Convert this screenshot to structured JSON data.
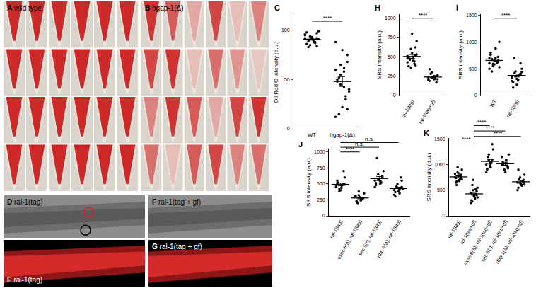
{
  "image_panels": [
    {
      "label": "A",
      "caption": "wild type"
    },
    {
      "label": "B",
      "caption": "hgap-1(Δ)"
    },
    {
      "label": "D",
      "caption": "ral-1(tag)"
    },
    {
      "label": "E",
      "caption": "ral-1(tag)"
    },
    {
      "label": "F",
      "caption": "ral-1(tag + gf)"
    },
    {
      "label": "G",
      "caption": "ral-1(tag + gf)"
    }
  ],
  "chart_data": [
    {
      "type": "scatter",
      "title": "C",
      "y_label": "Oil Red O intensity (a.u.)",
      "categories": [
        "WT",
        "hgap-1(Δ)"
      ],
      "values": [
        [
          96,
          92,
          88,
          85,
          98,
          91,
          87,
          93,
          89,
          95,
          84,
          90,
          94,
          86,
          99,
          88,
          91,
          83,
          92,
          97
        ],
        [
          88,
          75,
          62,
          55,
          48,
          40,
          33,
          22,
          15,
          12,
          68,
          58,
          45,
          50,
          38,
          30,
          80,
          52,
          60,
          20,
          42,
          65
        ]
      ],
      "mean": [
        91,
        48
      ],
      "sem": [
        1,
        5
      ],
      "color": "#000000",
      "marker": "circle",
      "grid": false,
      "ylim": [
        0,
        115
      ],
      "yticks": [
        0,
        50,
        100
      ],
      "comparisons": [
        {
          "from": 0,
          "to": 1,
          "text": "****"
        }
      ]
    },
    {
      "type": "scatter",
      "title": "H",
      "y_label": "SRS intensity (a.u.)",
      "categories": [
        "ral-1(tag)",
        "ral-1(tag+gf)"
      ],
      "values": [
        [
          480,
          520,
          450,
          600,
          380,
          700,
          410,
          550,
          470,
          430,
          620,
          500,
          360,
          490,
          530,
          440,
          800,
          460,
          510,
          390
        ],
        [
          230,
          250,
          210,
          300,
          190,
          260,
          220,
          240,
          280,
          200,
          170,
          250,
          230,
          340,
          210,
          240
        ]
      ],
      "mean": [
        504,
        239
      ],
      "sem": [
        25,
        11
      ],
      "color": "#000000",
      "marker": "circle",
      "grid": false,
      "ylim": [
        0,
        1050
      ],
      "yticks": [
        0,
        250,
        500,
        750,
        1000
      ],
      "comparisons": [
        {
          "from": 0,
          "to": 1,
          "text": "****"
        }
      ]
    },
    {
      "type": "scatter",
      "title": "I",
      "y_label": "SRS intensity (a.u.)",
      "categories": [
        "WT",
        "ral-1(sig)"
      ],
      "values": [
        [
          600,
          650,
          700,
          550,
          800,
          1000,
          620,
          580,
          680,
          500,
          720,
          640,
          590,
          760,
          530,
          610,
          660,
          450,
          700,
          620,
          880,
          570
        ],
        [
          350,
          400,
          300,
          450,
          250,
          500,
          380,
          200,
          420,
          330,
          600,
          280,
          360,
          150,
          440,
          390,
          310,
          700,
          270,
          410
        ]
      ],
      "mean": [
        655,
        375
      ],
      "sem": [
        25,
        28
      ],
      "color": "#000000",
      "marker": "circle",
      "grid": false,
      "ylim": [
        0,
        1520
      ],
      "yticks": [
        0,
        500,
        1000,
        1500
      ],
      "comparisons": [
        {
          "from": 0,
          "to": 1,
          "text": "****"
        }
      ]
    },
    {
      "type": "scatter",
      "title": "J",
      "y_label": "SRS intensity (a.u.)",
      "categories": [
        "ral-1(tag)",
        "exoc-8(Δ); ral-1(tag)",
        "sec-5(*); ral-1(tag)",
        "rtbp-1(Δ); ral-1(tag)"
      ],
      "values": [
        [
          450,
          500,
          470,
          420,
          550,
          600,
          480,
          400,
          520,
          460,
          700,
          440,
          380,
          510,
          490
        ],
        [
          300,
          280,
          250,
          320,
          220,
          350,
          260,
          290,
          200,
          310,
          270,
          240,
          380,
          230
        ],
        [
          550,
          600,
          500,
          650,
          480,
          700,
          520,
          580,
          900,
          450,
          620,
          540,
          560,
          510
        ],
        [
          400,
          450,
          350,
          500,
          300,
          420,
          600,
          380,
          460,
          330,
          550,
          410,
          440,
          370
        ]
      ],
      "mean": [
        491,
        279,
        583,
        426
      ],
      "sem": [
        20,
        13,
        31,
        22
      ],
      "color": "#000000",
      "marker": "circle",
      "grid": false,
      "ylim": [
        0,
        1050
      ],
      "yticks": [
        0,
        250,
        500,
        750,
        1000
      ],
      "comparisons": [
        {
          "from": 0,
          "to": 1,
          "text": "****"
        },
        {
          "from": 0,
          "to": 2,
          "text": "n.s."
        },
        {
          "from": 0,
          "to": 3,
          "text": "n.s."
        }
      ]
    },
    {
      "type": "scatter",
      "title": "K",
      "y_label": "SRS intensity (a.u.)",
      "categories": [
        "ral-1(tag)",
        "ral-1(tag+gf)",
        "exoc-8(Δ); ral-1(tag+gf)",
        "sec-5(*); ral-1(tag+gf)",
        "rtbp-1(Δ); ral-1(tag+gf)"
      ],
      "values": [
        [
          750,
          800,
          700,
          850,
          650,
          900,
          720,
          780,
          600,
          820,
          760,
          680,
          950,
          740,
          710,
          790,
          830,
          670
        ],
        [
          450,
          400,
          350,
          500,
          300,
          550,
          420,
          380,
          600,
          250,
          480,
          330,
          700,
          440,
          360,
          520,
          410,
          280
        ],
        [
          1000,
          1100,
          950,
          1200,
          900,
          1300,
          1050,
          980,
          1150,
          850,
          1400,
          1020,
          1080,
          920
        ],
        [
          1000,
          950,
          1100,
          900,
          1050,
          1200,
          980,
          850,
          1020,
          1150,
          930,
          1080
        ],
        [
          650,
          700,
          600,
          750,
          550,
          800,
          680,
          620,
          720,
          500,
          660,
          590,
          640,
          900,
          610
        ]
      ],
      "mean": [
        761,
        429,
        1064,
        1018,
        665
      ],
      "sem": [
        20,
        28,
        40,
        30,
        25
      ],
      "color": "#000000",
      "marker": "circle",
      "grid": false,
      "ylim": [
        0,
        1520
      ],
      "yticks": [
        0,
        500,
        1000,
        1500
      ],
      "comparisons": [
        {
          "from": 0,
          "to": 1,
          "text": "****"
        },
        {
          "from": 1,
          "to": 4,
          "text": "****"
        },
        {
          "from": 1,
          "to": 3,
          "text": "****"
        },
        {
          "from": 1,
          "to": 2,
          "text": "****"
        }
      ]
    }
  ]
}
